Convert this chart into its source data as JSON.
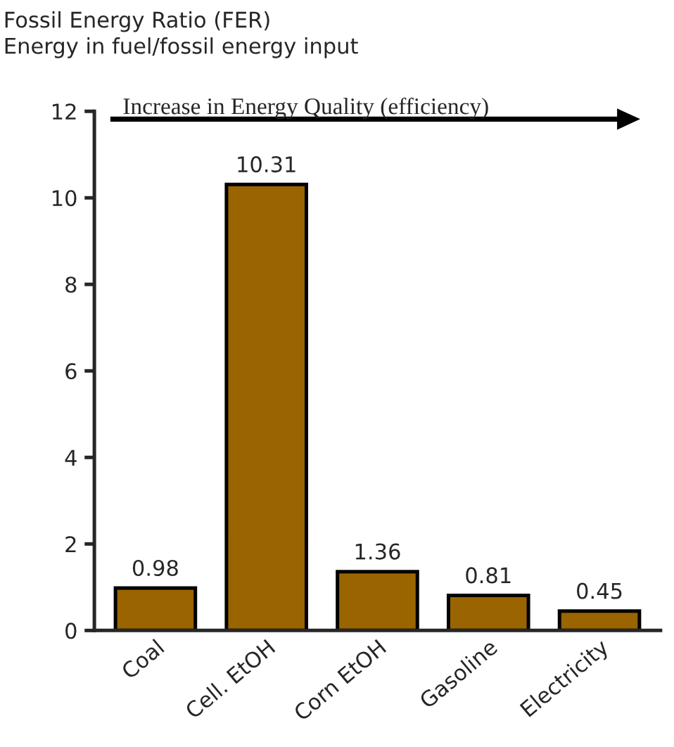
{
  "chart_data": {
    "type": "bar",
    "title": "Fossil Energy Ratio (FER)",
    "subtitle": "Energy in fuel/fossil energy input",
    "categories": [
      "Coal",
      "Cell. EtOH",
      "Corn EtOH",
      "Gasoline",
      "Electricity"
    ],
    "values": [
      0.98,
      10.31,
      1.36,
      0.81,
      0.45
    ],
    "color": "#9a6400",
    "ylim": [
      0,
      12
    ],
    "yticks": [
      0,
      2,
      4,
      6,
      8,
      10,
      12
    ],
    "grid": false,
    "data_labels": true,
    "annotations": [
      "Increase in Energy Quality (efficiency)"
    ]
  }
}
